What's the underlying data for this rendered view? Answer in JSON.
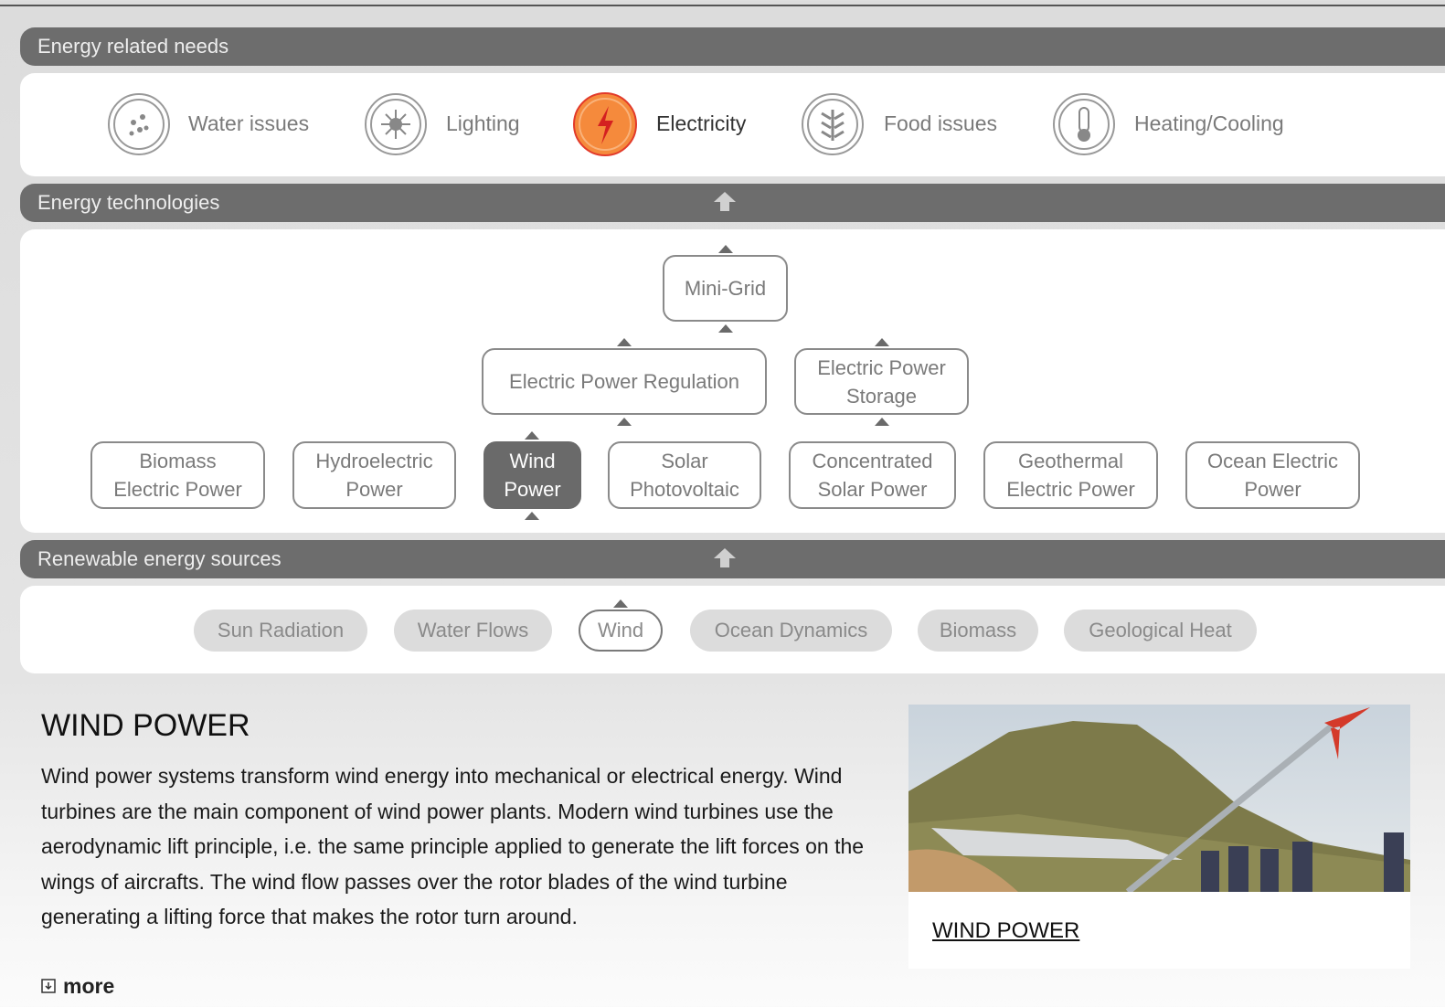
{
  "needs": {
    "title": "Energy related needs",
    "items": [
      "Water issues",
      "Lighting",
      "Electricity",
      "Food issues",
      "Heating/Cooling"
    ]
  },
  "technologies": {
    "title": "Energy technologies",
    "nodes": [
      "Mini-Grid",
      "Electric Power Regulation",
      "Electric Power Storage",
      "Biomass Electric Power",
      "Hydroelectric Power",
      "Wind Power",
      "Solar Photovoltaic",
      "Concentrated Solar Power",
      "Geothermal Electric Power",
      "Ocean Electric Power"
    ]
  },
  "sources": {
    "title": "Renewable energy sources",
    "items": [
      "Sun Radiation",
      "Water Flows",
      "Wind",
      "Ocean Dynamics",
      "Biomass",
      "Geological Heat"
    ]
  },
  "detail": {
    "title": "WIND POWER",
    "text": "Wind power systems transform wind energy into mechanical or electrical energy. Wind turbines are the main component of wind power plants. Modern wind turbines use the aerodynamic lift principle, i.e. the same principle applied to generate the lift forces on the wings of aircrafts. The wind flow passes over the rotor blades of the wind turbine generating a lifting force that makes the rotor turn around.",
    "more": "more",
    "image_caption": "WIND POWER"
  }
}
